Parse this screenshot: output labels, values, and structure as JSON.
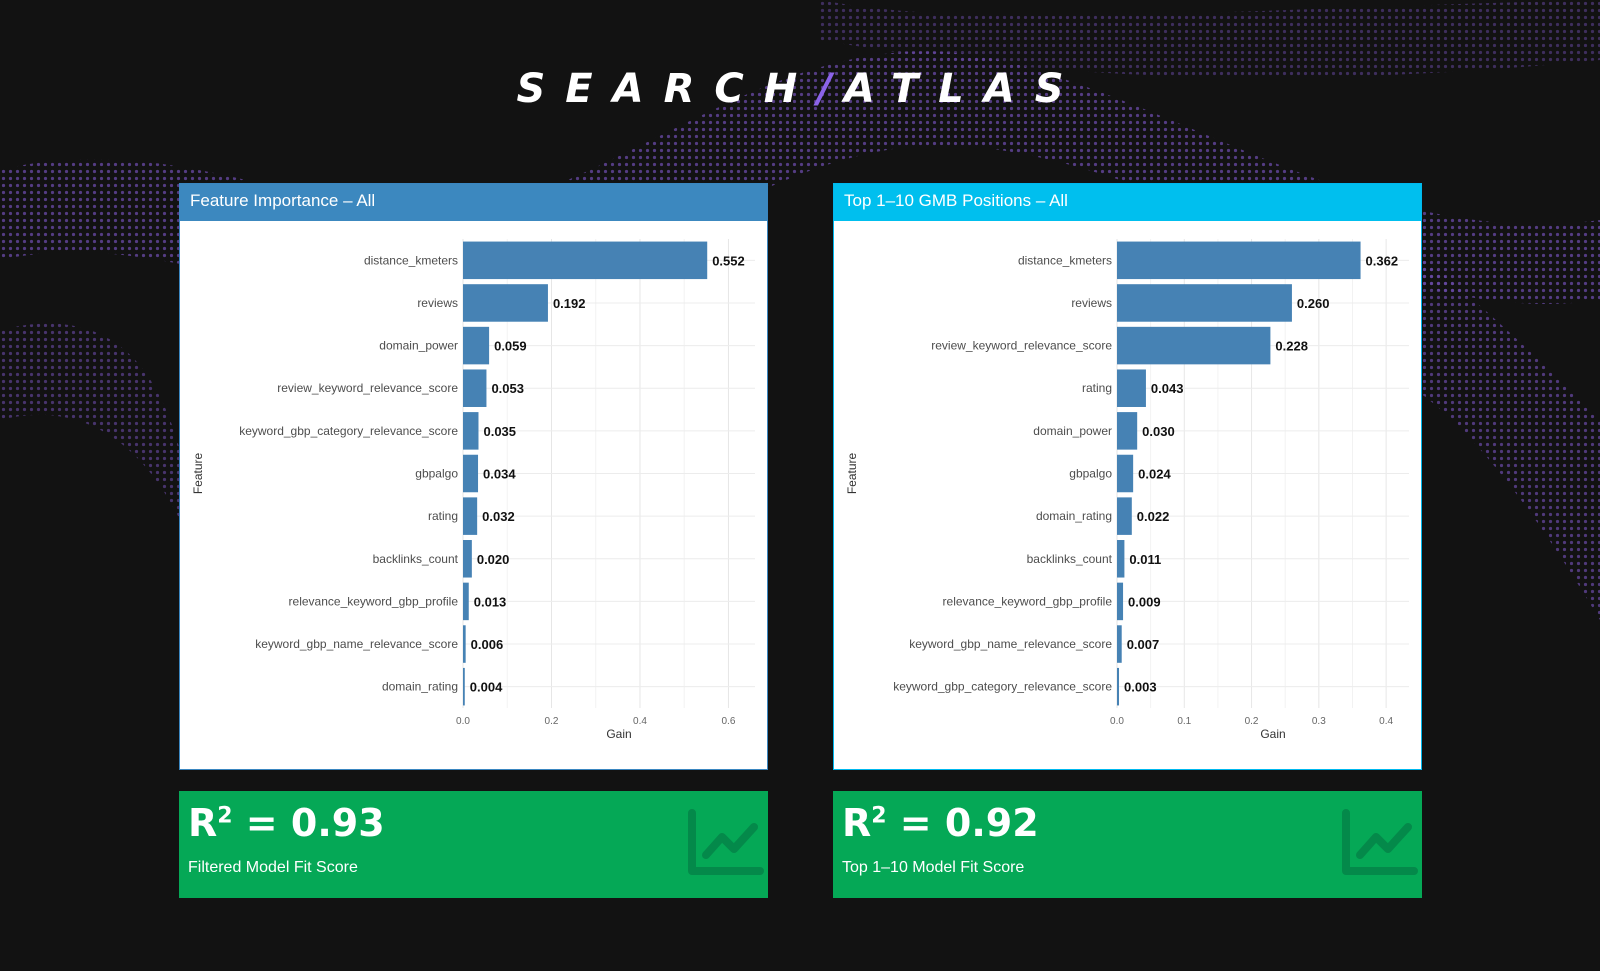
{
  "logo": {
    "left": "SEARCH",
    "slash": "/",
    "right": "ATLAS"
  },
  "panels": [
    {
      "header": "Feature Importance – All",
      "stat": {
        "prefix": "R",
        "sup": "2",
        "value": " = 0.93",
        "label": "Filtered Model Fit Score"
      }
    },
    {
      "header": "Top 1–10 GMB Positions – All",
      "stat": {
        "prefix": "R",
        "sup": "2",
        "value": " = 0.92",
        "label": "Top 1–10 Model Fit Score"
      }
    }
  ],
  "colors": {
    "bar": "#4682b4",
    "stat_bg": "#05a856",
    "left_header": "#3c88bf",
    "right_header": "#00bfee"
  },
  "icons": {
    "stat": "line-chart-icon"
  },
  "chart_data": [
    {
      "type": "bar",
      "orientation": "horizontal",
      "categories": [
        "distance_kmeters",
        "reviews",
        "domain_power",
        "review_keyword_relevance_score",
        "keyword_gbp_category_relevance_score",
        "gbpalgo",
        "rating",
        "backlinks_count",
        "relevance_keyword_gbp_profile",
        "keyword_gbp_name_relevance_score",
        "domain_rating"
      ],
      "values": [
        0.552,
        0.192,
        0.059,
        0.053,
        0.035,
        0.034,
        0.032,
        0.02,
        0.013,
        0.006,
        0.004
      ],
      "value_labels": [
        "0.552",
        "0.192",
        "0.059",
        "0.053",
        "0.035",
        "0.034",
        "0.032",
        "0.020",
        "0.013",
        "0.006",
        "0.004"
      ],
      "xlabel": "Gain",
      "ylabel": "Feature",
      "xlim": [
        0,
        0.66
      ],
      "xticks": [
        0,
        0.2,
        0.4,
        0.6
      ],
      "xtick_labels": [
        "0.0",
        "0.2",
        "0.4",
        "0.6"
      ],
      "grid": true
    },
    {
      "type": "bar",
      "orientation": "horizontal",
      "categories": [
        "distance_kmeters",
        "reviews",
        "review_keyword_relevance_score",
        "rating",
        "domain_power",
        "gbpalgo",
        "domain_rating",
        "backlinks_count",
        "relevance_keyword_gbp_profile",
        "keyword_gbp_name_relevance_score",
        "keyword_gbp_category_relevance_score"
      ],
      "values": [
        0.362,
        0.26,
        0.228,
        0.043,
        0.03,
        0.024,
        0.022,
        0.011,
        0.009,
        0.007,
        0.003
      ],
      "value_labels": [
        "0.362",
        "0.260",
        "0.228",
        "0.043",
        "0.030",
        "0.024",
        "0.022",
        "0.011",
        "0.009",
        "0.007",
        "0.003"
      ],
      "xlabel": "Gain",
      "ylabel": "Feature",
      "xlim": [
        0,
        0.434
      ],
      "xticks": [
        0,
        0.1,
        0.2,
        0.3,
        0.4
      ],
      "xtick_labels": [
        "0.0",
        "0.1",
        "0.2",
        "0.3",
        "0.4"
      ],
      "grid": true
    }
  ]
}
